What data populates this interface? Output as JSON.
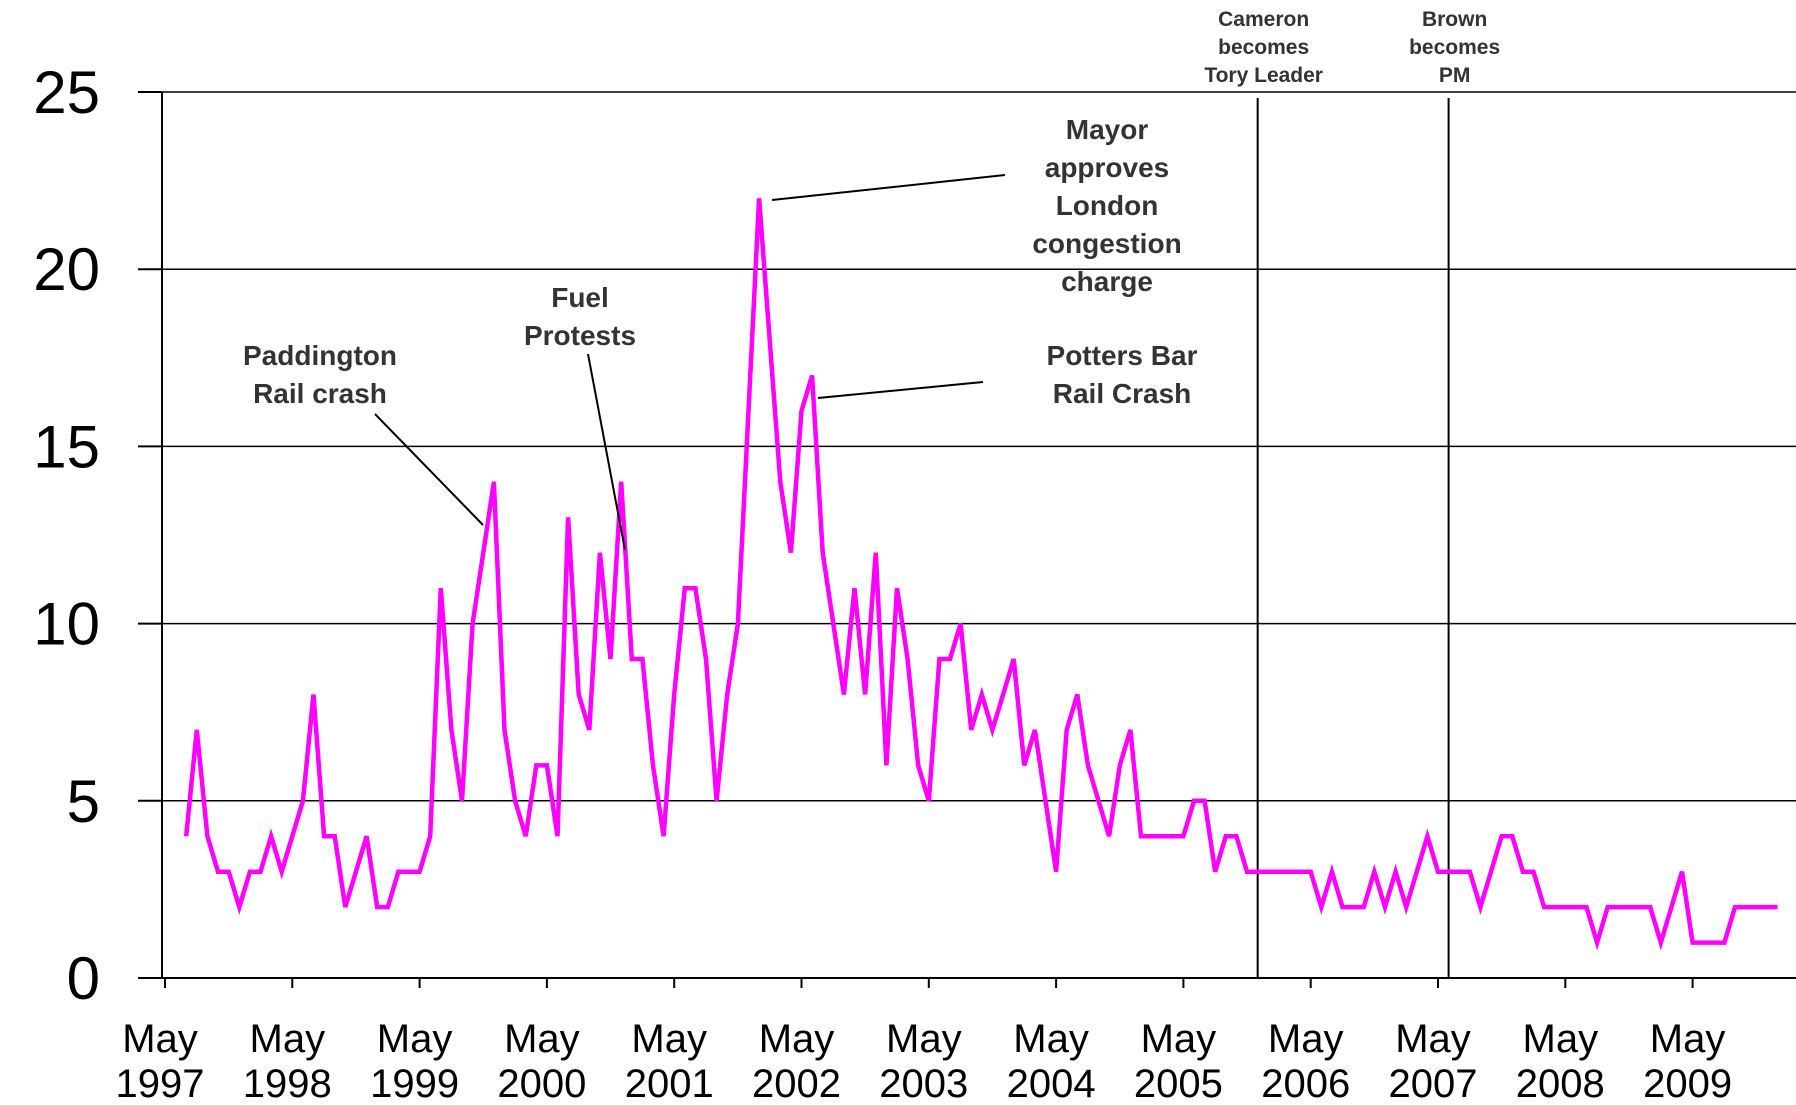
{
  "chart_data": {
    "type": "line",
    "title": "",
    "xlabel": "",
    "ylabel": "",
    "ylim": [
      0,
      25
    ],
    "y_ticks": [
      "0",
      "5",
      "10",
      "15",
      "20",
      "25"
    ],
    "x_ticks": [
      {
        "month": "May",
        "year": "1997"
      },
      {
        "month": "May",
        "year": "1998"
      },
      {
        "month": "May",
        "year": "1999"
      },
      {
        "month": "May",
        "year": "2000"
      },
      {
        "month": "May",
        "year": "2001"
      },
      {
        "month": "May",
        "year": "2002"
      },
      {
        "month": "May",
        "year": "2003"
      },
      {
        "month": "May",
        "year": "2004"
      },
      {
        "month": "May",
        "year": "2005"
      },
      {
        "month": "May",
        "year": "2006"
      },
      {
        "month": "May",
        "year": "2007"
      },
      {
        "month": "May",
        "year": "2008"
      },
      {
        "month": "May",
        "year": "2009"
      }
    ],
    "grid": "horizontal",
    "line_color": "#ff00ff",
    "series": [
      {
        "name": "",
        "x": [
          "1997-07",
          "1997-08",
          "1997-09",
          "1997-10",
          "1997-11",
          "1997-12",
          "1998-01",
          "1998-02",
          "1998-03",
          "1998-04",
          "1998-05",
          "1998-06",
          "1998-07",
          "1998-08",
          "1998-09",
          "1998-10",
          "1998-11",
          "1998-12",
          "1999-01",
          "1999-02",
          "1999-03",
          "1999-04",
          "1999-05",
          "1999-06",
          "1999-07",
          "1999-08",
          "1999-09",
          "1999-10",
          "1999-11",
          "1999-12",
          "2000-01",
          "2000-02",
          "2000-03",
          "2000-04",
          "2000-05",
          "2000-06",
          "2000-07",
          "2000-08",
          "2000-09",
          "2000-10",
          "2000-11",
          "2000-12",
          "2001-01",
          "2001-02",
          "2001-03",
          "2001-04",
          "2001-05",
          "2001-06",
          "2001-07",
          "2001-08",
          "2001-09",
          "2001-10",
          "2001-11",
          "2001-12",
          "2002-01",
          "2002-02",
          "2002-03",
          "2002-04",
          "2002-05",
          "2002-06",
          "2002-07",
          "2002-08",
          "2002-09",
          "2002-10",
          "2002-11",
          "2002-12",
          "2003-01",
          "2003-02",
          "2003-03",
          "2003-04",
          "2003-05",
          "2003-06",
          "2003-07",
          "2003-08",
          "2003-09",
          "2003-10",
          "2003-11",
          "2003-12",
          "2004-01",
          "2004-02",
          "2004-03",
          "2004-04",
          "2004-05",
          "2004-06",
          "2004-07",
          "2004-08",
          "2004-09",
          "2004-10",
          "2004-11",
          "2004-12",
          "2005-01",
          "2005-02",
          "2005-03",
          "2005-04",
          "2005-05",
          "2005-06",
          "2005-07",
          "2005-08",
          "2005-09",
          "2005-10",
          "2005-11",
          "2005-12",
          "2006-01",
          "2006-02",
          "2006-03",
          "2006-04",
          "2006-05",
          "2006-06",
          "2006-07",
          "2006-08",
          "2006-09",
          "2006-10",
          "2006-11",
          "2006-12",
          "2007-01",
          "2007-02",
          "2007-03",
          "2007-04",
          "2007-05",
          "2007-06",
          "2007-07",
          "2007-08",
          "2007-09",
          "2007-10",
          "2007-11",
          "2007-12",
          "2008-01",
          "2008-02",
          "2008-03",
          "2008-04",
          "2008-05",
          "2008-06",
          "2008-07",
          "2008-08",
          "2008-09",
          "2008-10",
          "2008-11",
          "2008-12",
          "2009-01",
          "2009-02",
          "2009-03",
          "2009-04",
          "2009-05",
          "2009-06",
          "2009-07",
          "2009-08",
          "2009-09",
          "2009-10",
          "2009-11",
          "2009-12",
          "2010-01"
        ],
        "values": [
          4,
          7,
          4,
          3,
          3,
          2,
          3,
          3,
          4,
          3,
          4,
          5,
          8,
          4,
          4,
          2,
          3,
          4,
          2,
          2,
          3,
          3,
          3,
          4,
          11,
          7,
          5,
          10,
          12,
          14,
          7,
          5,
          4,
          6,
          6,
          4,
          13,
          8,
          7,
          12,
          9,
          14,
          9,
          9,
          6,
          4,
          8,
          11,
          11,
          9,
          5,
          8,
          10,
          16,
          22,
          18,
          14,
          12,
          16,
          17,
          12,
          10,
          8,
          11,
          8,
          12,
          6,
          11,
          9,
          6,
          5,
          9,
          9,
          10,
          7,
          8,
          7,
          8,
          9,
          6,
          7,
          5,
          3,
          7,
          8,
          6,
          5,
          4,
          6,
          7,
          4,
          4,
          4,
          4,
          4,
          5,
          5,
          3,
          4,
          4,
          3,
          3,
          3,
          3,
          3,
          3,
          3,
          2,
          3,
          2,
          2,
          2,
          3,
          2,
          3,
          2,
          3,
          4,
          3,
          3,
          3,
          3,
          2,
          3,
          4,
          4,
          3,
          3,
          2,
          2,
          2,
          2,
          2,
          1,
          2,
          2,
          2,
          2,
          2,
          1,
          2,
          3,
          1,
          1,
          1,
          1,
          2,
          2,
          2,
          2,
          2
        ]
      }
    ],
    "event_lines": [
      {
        "date": "2005-12",
        "label_lines": [
          "Cameron",
          "becomes",
          "Tory Leader"
        ]
      },
      {
        "date": "2007-06",
        "label_lines": [
          "Brown",
          "becomes",
          "PM"
        ]
      }
    ],
    "annotations": [
      {
        "label_lines": [
          "Paddington",
          "Rail crash"
        ],
        "point": "1999-09"
      },
      {
        "label_lines": [
          "Fuel",
          "Protests"
        ],
        "point": "2000-10"
      },
      {
        "label_lines": [
          "Mayor",
          "approves",
          "London",
          "congestion",
          "charge"
        ],
        "point": "2002-01"
      },
      {
        "label_lines": [
          "Potters Bar",
          "Rail Crash"
        ],
        "point": "2002-06"
      }
    ]
  }
}
